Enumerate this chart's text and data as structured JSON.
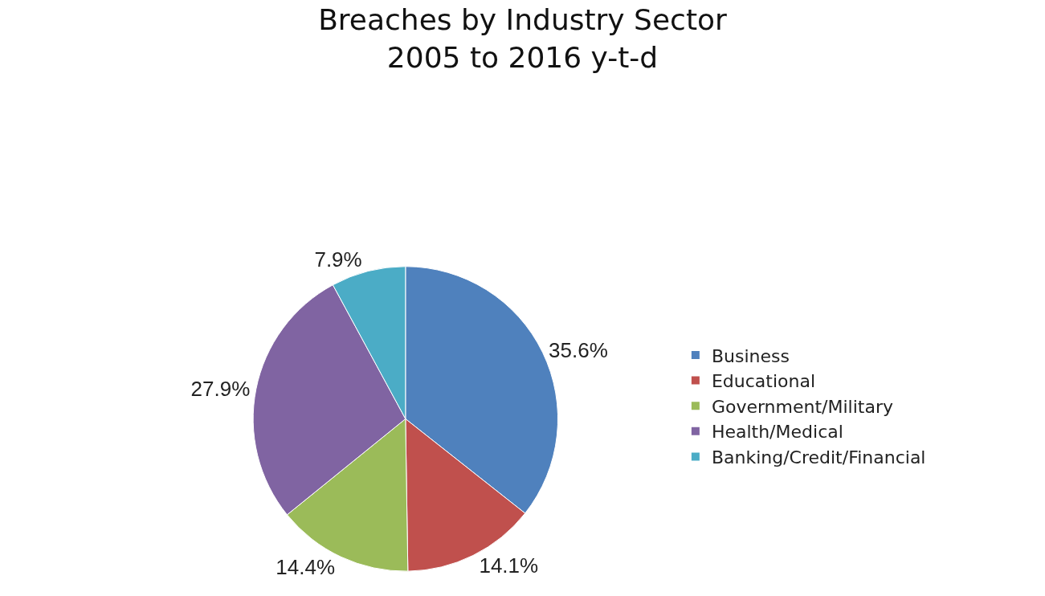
{
  "chart_data": {
    "type": "pie",
    "title": "Breaches by Industry Sector\n2005 to 2016 y-t-d",
    "categories": [
      "Business",
      "Educational",
      "Government/Military",
      "Health/Medical",
      "Banking/Credit/Financial"
    ],
    "values": [
      35.6,
      14.1,
      14.4,
      27.9,
      7.9
    ],
    "value_labels": [
      "35.6%",
      "14.1%",
      "14.4%",
      "27.9%",
      "7.9%"
    ],
    "colors": [
      "#4f81bd",
      "#c0504d",
      "#9bbb59",
      "#8064a2",
      "#4bacc6"
    ],
    "legend": "right"
  }
}
